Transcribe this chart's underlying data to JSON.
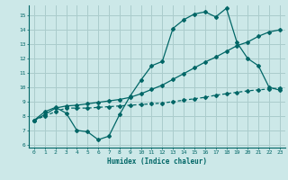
{
  "title": "",
  "xlabel": "Humidex (Indice chaleur)",
  "ylabel": "",
  "bg_color": "#cce8e8",
  "line_color": "#006666",
  "grid_color": "#aacccc",
  "xlim": [
    -0.5,
    23.5
  ],
  "ylim": [
    5.8,
    15.7
  ],
  "yticks": [
    6,
    7,
    8,
    9,
    10,
    11,
    12,
    13,
    14,
    15
  ],
  "xticks": [
    0,
    1,
    2,
    3,
    4,
    5,
    6,
    7,
    8,
    9,
    10,
    11,
    12,
    13,
    14,
    15,
    16,
    17,
    18,
    19,
    20,
    21,
    22,
    23
  ],
  "line1_x": [
    0,
    1,
    2,
    3,
    4,
    5,
    6,
    7,
    8,
    9,
    10,
    11,
    12,
    13,
    14,
    15,
    16,
    17,
    18,
    19,
    20,
    21,
    22,
    23
  ],
  "line1_y": [
    7.7,
    8.3,
    8.6,
    8.2,
    7.0,
    6.9,
    6.35,
    6.6,
    8.1,
    9.4,
    10.5,
    11.5,
    11.8,
    14.1,
    14.7,
    15.1,
    15.25,
    14.9,
    15.5,
    13.1,
    12.0,
    11.5,
    10.0,
    9.8
  ],
  "line2_x": [
    0,
    1,
    2,
    3,
    4,
    5,
    6,
    7,
    8,
    9,
    10,
    11,
    12,
    13,
    14,
    15,
    16,
    17,
    18,
    19,
    20,
    21,
    22,
    23
  ],
  "line2_y": [
    7.7,
    8.1,
    8.55,
    8.7,
    8.75,
    8.85,
    8.95,
    9.05,
    9.15,
    9.3,
    9.55,
    9.85,
    10.15,
    10.55,
    10.95,
    11.35,
    11.75,
    12.1,
    12.5,
    12.9,
    13.15,
    13.55,
    13.85,
    14.0
  ],
  "line3_x": [
    0,
    1,
    2,
    3,
    4,
    5,
    6,
    7,
    8,
    9,
    10,
    11,
    12,
    13,
    14,
    15,
    16,
    17,
    18,
    19,
    20,
    21,
    22,
    23
  ],
  "line3_y": [
    7.7,
    8.0,
    8.3,
    8.55,
    8.55,
    8.55,
    8.6,
    8.65,
    8.7,
    8.75,
    8.8,
    8.85,
    8.9,
    9.0,
    9.1,
    9.2,
    9.3,
    9.45,
    9.55,
    9.65,
    9.75,
    9.82,
    9.88,
    9.95
  ]
}
